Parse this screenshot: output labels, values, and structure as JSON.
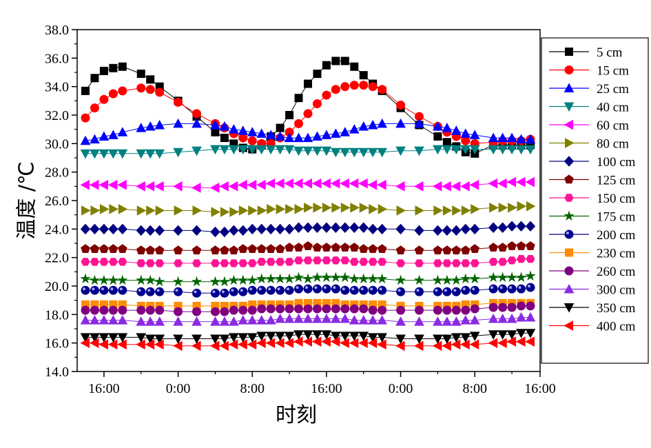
{
  "chart_data": {
    "type": "line",
    "xlabel": "时刻",
    "ylabel": "温度 /℃",
    "ylim": [
      14.0,
      38.0
    ],
    "y_ticks": [
      "14.0",
      "16.0",
      "18.0",
      "20.0",
      "22.0",
      "24.0",
      "26.0",
      "28.0",
      "30.0",
      "32.0",
      "34.0",
      "36.0",
      "38.0"
    ],
    "x_range": [
      14.0,
      62.0
    ],
    "x_ticks": [
      {
        "at": 16,
        "label": "16:00"
      },
      {
        "at": 24,
        "label": "0:00"
      },
      {
        "at": 32,
        "label": "8:00"
      },
      {
        "at": 40,
        "label": "16:00"
      },
      {
        "at": 48,
        "label": "0:00"
      },
      {
        "at": 56,
        "label": "8:00"
      },
      {
        "at": 64,
        "label": "16:00"
      }
    ],
    "legend_position": "right",
    "x": [
      14,
      15,
      16,
      17,
      18,
      20,
      21,
      22,
      24,
      26,
      28,
      29,
      30,
      31,
      32,
      33,
      34,
      35,
      36,
      37,
      38,
      39,
      40,
      41,
      42,
      43,
      44,
      45,
      46,
      48,
      50,
      52,
      53,
      54,
      55,
      56,
      58,
      59,
      60,
      61,
      62
    ],
    "series": [
      {
        "name": "5 cm",
        "color": "#000000",
        "marker": "square",
        "values": [
          33.7,
          34.6,
          35.1,
          35.3,
          35.4,
          34.9,
          34.5,
          34.0,
          33.0,
          31.9,
          30.8,
          30.4,
          30.0,
          29.7,
          29.6,
          29.9,
          30.5,
          31.1,
          32.0,
          33.2,
          34.2,
          34.9,
          35.5,
          35.8,
          35.8,
          35.4,
          34.8,
          34.2,
          33.7,
          32.5,
          31.3,
          30.5,
          30.1,
          29.8,
          29.4,
          29.3,
          29.9,
          29.9,
          29.9,
          29.9,
          29.9
        ]
      },
      {
        "name": "15 cm",
        "color": "#ff0000",
        "marker": "circle",
        "values": [
          31.8,
          32.5,
          33.1,
          33.5,
          33.7,
          33.9,
          33.8,
          33.6,
          32.9,
          32.1,
          31.4,
          31.1,
          30.7,
          30.4,
          30.2,
          30.0,
          30.0,
          30.4,
          30.8,
          31.4,
          32.1,
          32.8,
          33.4,
          33.8,
          34.0,
          34.1,
          34.1,
          34.0,
          33.8,
          32.7,
          31.9,
          31.2,
          30.8,
          30.5,
          30.2,
          30.0,
          30.1,
          30.2,
          30.2,
          30.2,
          30.3
        ]
      },
      {
        "name": "25 cm",
        "color": "#0000ff",
        "marker": "triangle-up",
        "values": [
          30.2,
          30.3,
          30.5,
          30.6,
          30.8,
          31.1,
          31.2,
          31.3,
          31.4,
          31.4,
          31.3,
          31.2,
          31.0,
          30.9,
          30.8,
          30.7,
          30.6,
          30.5,
          30.4,
          30.4,
          30.4,
          30.5,
          30.6,
          30.7,
          30.8,
          31.0,
          31.2,
          31.3,
          31.4,
          31.4,
          31.4,
          31.2,
          31.1,
          30.9,
          30.7,
          30.6,
          30.4,
          30.4,
          30.4,
          30.3,
          30.3
        ]
      },
      {
        "name": "40 cm",
        "color": "#008080",
        "marker": "triangle-down",
        "values": [
          29.3,
          29.3,
          29.3,
          29.3,
          29.3,
          29.3,
          29.3,
          29.3,
          29.4,
          29.5,
          29.6,
          29.6,
          29.6,
          29.6,
          29.6,
          29.6,
          29.6,
          29.6,
          29.6,
          29.5,
          29.5,
          29.5,
          29.5,
          29.4,
          29.4,
          29.4,
          29.4,
          29.4,
          29.4,
          29.5,
          29.5,
          29.6,
          29.6,
          29.6,
          29.6,
          29.6,
          29.6,
          29.6,
          29.6,
          29.6,
          29.6
        ]
      },
      {
        "name": "60 cm",
        "color": "#ff00ff",
        "marker": "triangle-left",
        "values": [
          27.1,
          27.1,
          27.1,
          27.1,
          27.1,
          27.0,
          27.0,
          27.0,
          27.0,
          26.9,
          26.9,
          27.0,
          27.0,
          27.1,
          27.1,
          27.1,
          27.2,
          27.2,
          27.2,
          27.2,
          27.2,
          27.2,
          27.2,
          27.2,
          27.2,
          27.2,
          27.2,
          27.1,
          27.1,
          27.0,
          27.0,
          27.0,
          27.0,
          27.0,
          27.0,
          27.1,
          27.2,
          27.2,
          27.3,
          27.3,
          27.3
        ]
      },
      {
        "name": "80 cm",
        "color": "#808000",
        "marker": "triangle-right",
        "values": [
          25.3,
          25.3,
          25.4,
          25.4,
          25.4,
          25.3,
          25.3,
          25.3,
          25.3,
          25.3,
          25.2,
          25.2,
          25.2,
          25.3,
          25.3,
          25.3,
          25.4,
          25.4,
          25.4,
          25.4,
          25.5,
          25.5,
          25.5,
          25.5,
          25.5,
          25.5,
          25.5,
          25.4,
          25.4,
          25.3,
          25.3,
          25.3,
          25.3,
          25.3,
          25.3,
          25.4,
          25.5,
          25.5,
          25.5,
          25.6,
          25.6
        ]
      },
      {
        "name": "100 cm",
        "color": "#000080",
        "marker": "diamond",
        "values": [
          24.0,
          24.0,
          24.0,
          24.0,
          24.0,
          23.9,
          23.9,
          23.9,
          23.9,
          23.9,
          23.8,
          23.8,
          23.9,
          23.9,
          24.0,
          24.0,
          24.0,
          24.0,
          24.0,
          24.1,
          24.1,
          24.1,
          24.1,
          24.1,
          24.1,
          24.1,
          24.1,
          24.0,
          24.0,
          24.0,
          23.9,
          23.9,
          23.9,
          23.9,
          24.0,
          24.0,
          24.1,
          24.1,
          24.2,
          24.2,
          24.2
        ]
      },
      {
        "name": "125 cm",
        "color": "#800000",
        "marker": "pentagon",
        "values": [
          22.6,
          22.6,
          22.6,
          22.6,
          22.6,
          22.5,
          22.5,
          22.5,
          22.5,
          22.5,
          22.5,
          22.5,
          22.5,
          22.6,
          22.6,
          22.6,
          22.6,
          22.6,
          22.7,
          22.7,
          22.8,
          22.7,
          22.7,
          22.7,
          22.7,
          22.7,
          22.6,
          22.6,
          22.6,
          22.5,
          22.5,
          22.5,
          22.5,
          22.5,
          22.5,
          22.6,
          22.7,
          22.7,
          22.8,
          22.8,
          22.8
        ]
      },
      {
        "name": "150 cm",
        "color": "#ff1493",
        "marker": "hexagon",
        "values": [
          21.7,
          21.7,
          21.7,
          21.7,
          21.7,
          21.6,
          21.6,
          21.6,
          21.6,
          21.6,
          21.6,
          21.6,
          21.6,
          21.6,
          21.6,
          21.7,
          21.7,
          21.7,
          21.7,
          21.8,
          21.8,
          21.8,
          21.8,
          21.8,
          21.8,
          21.7,
          21.7,
          21.7,
          21.7,
          21.6,
          21.6,
          21.6,
          21.6,
          21.6,
          21.6,
          21.6,
          21.7,
          21.7,
          21.8,
          21.9,
          21.9
        ]
      },
      {
        "name": "175 cm",
        "color": "#006400",
        "marker": "star",
        "values": [
          20.5,
          20.4,
          20.4,
          20.4,
          20.4,
          20.4,
          20.4,
          20.3,
          20.3,
          20.3,
          20.3,
          20.3,
          20.4,
          20.4,
          20.4,
          20.5,
          20.5,
          20.5,
          20.5,
          20.6,
          20.5,
          20.6,
          20.6,
          20.6,
          20.6,
          20.5,
          20.5,
          20.5,
          20.5,
          20.4,
          20.4,
          20.4,
          20.4,
          20.4,
          20.5,
          20.5,
          20.6,
          20.6,
          20.6,
          20.6,
          20.7
        ]
      },
      {
        "name": "200 cm",
        "color": "#00008b",
        "marker": "ball",
        "values": [
          19.7,
          19.7,
          19.7,
          19.7,
          19.7,
          19.6,
          19.6,
          19.6,
          19.6,
          19.5,
          19.5,
          19.5,
          19.6,
          19.6,
          19.7,
          19.7,
          19.7,
          19.7,
          19.7,
          19.8,
          19.8,
          19.8,
          19.8,
          19.8,
          19.7,
          19.7,
          19.7,
          19.7,
          19.7,
          19.6,
          19.6,
          19.6,
          19.6,
          19.6,
          19.7,
          19.7,
          19.8,
          19.8,
          19.8,
          19.8,
          19.9
        ]
      },
      {
        "name": "230 cm",
        "color": "#ff8c00",
        "marker": "square",
        "values": [
          18.7,
          18.7,
          18.7,
          18.7,
          18.7,
          18.6,
          18.6,
          18.6,
          18.6,
          18.6,
          18.6,
          18.6,
          18.6,
          18.6,
          18.7,
          18.7,
          18.7,
          18.7,
          18.7,
          18.8,
          18.8,
          18.8,
          18.8,
          18.8,
          18.7,
          18.7,
          18.7,
          18.7,
          18.7,
          18.6,
          18.6,
          18.6,
          18.6,
          18.6,
          18.7,
          18.7,
          18.8,
          18.8,
          18.8,
          18.8,
          18.8
        ]
      },
      {
        "name": "260 cm",
        "color": "#800080",
        "marker": "circle",
        "values": [
          18.3,
          18.3,
          18.3,
          18.3,
          18.3,
          18.3,
          18.3,
          18.3,
          18.2,
          18.2,
          18.2,
          18.2,
          18.3,
          18.3,
          18.3,
          18.4,
          18.4,
          18.4,
          18.4,
          18.4,
          18.4,
          18.4,
          18.4,
          18.4,
          18.4,
          18.4,
          18.4,
          18.3,
          18.3,
          18.3,
          18.3,
          18.3,
          18.3,
          18.3,
          18.3,
          18.4,
          18.5,
          18.5,
          18.5,
          18.6,
          18.6
        ]
      },
      {
        "name": "300 cm",
        "color": "#8a2be2",
        "marker": "triangle-up",
        "values": [
          17.6,
          17.6,
          17.6,
          17.6,
          17.6,
          17.5,
          17.5,
          17.5,
          17.5,
          17.5,
          17.5,
          17.5,
          17.5,
          17.6,
          17.6,
          17.6,
          17.6,
          17.7,
          17.7,
          17.7,
          17.7,
          17.7,
          17.7,
          17.7,
          17.7,
          17.6,
          17.6,
          17.6,
          17.6,
          17.5,
          17.5,
          17.5,
          17.5,
          17.5,
          17.6,
          17.6,
          17.7,
          17.7,
          17.7,
          17.8,
          17.8
        ]
      },
      {
        "name": "350 cm",
        "color": "#000000",
        "marker": "triangle-down",
        "values": [
          16.4,
          16.4,
          16.4,
          16.4,
          16.4,
          16.4,
          16.3,
          16.3,
          16.3,
          16.3,
          16.3,
          16.3,
          16.4,
          16.4,
          16.4,
          16.5,
          16.5,
          16.5,
          16.5,
          16.6,
          16.6,
          16.6,
          16.6,
          16.5,
          16.5,
          16.5,
          16.5,
          16.4,
          16.4,
          16.3,
          16.3,
          16.3,
          16.3,
          16.4,
          16.4,
          16.5,
          16.6,
          16.6,
          16.6,
          16.7,
          16.7
        ]
      },
      {
        "name": "400 cm",
        "color": "#ff0000",
        "marker": "triangle-left",
        "values": [
          16.0,
          16.0,
          15.9,
          15.9,
          15.9,
          15.9,
          15.9,
          15.9,
          15.8,
          15.8,
          15.8,
          15.8,
          15.9,
          15.9,
          15.9,
          16.0,
          16.0,
          16.0,
          16.0,
          16.1,
          16.1,
          16.1,
          16.1,
          16.1,
          16.0,
          16.0,
          16.0,
          16.0,
          15.9,
          15.8,
          15.8,
          15.8,
          15.8,
          15.9,
          15.9,
          15.9,
          16.0,
          16.0,
          16.1,
          16.1,
          16.1
        ]
      }
    ]
  }
}
